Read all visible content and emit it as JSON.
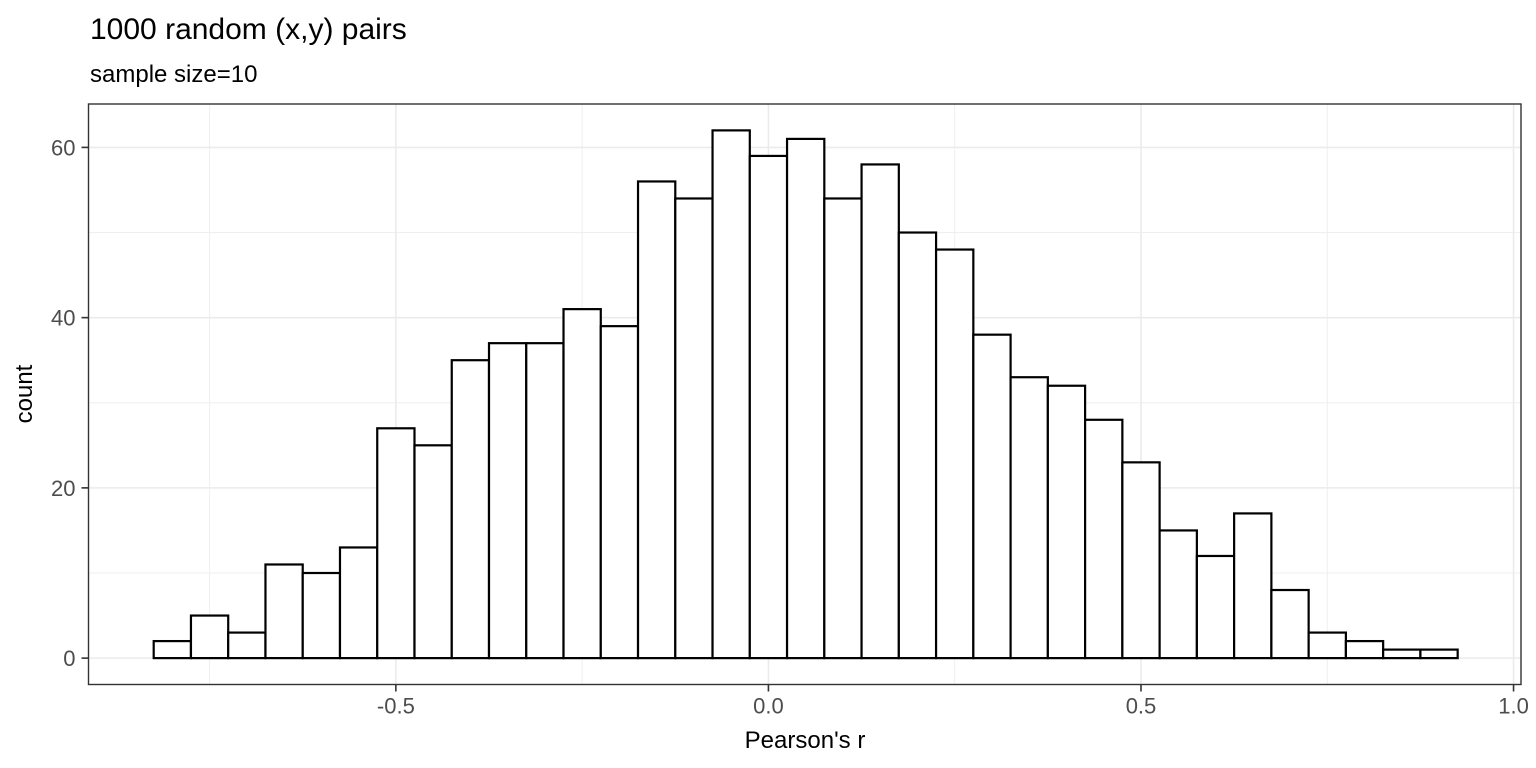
{
  "chart_data": {
    "type": "histogram",
    "title": "1000 random (x,y) pairs",
    "subtitle": "sample size=10",
    "xlabel": "Pearson's r",
    "ylabel": "count",
    "binwidth": 0.05,
    "bin_centers": [
      -0.8,
      -0.75,
      -0.7,
      -0.65,
      -0.6,
      -0.55,
      -0.5,
      -0.45,
      -0.4,
      -0.35,
      -0.3,
      -0.25,
      -0.2,
      -0.15,
      -0.1,
      -0.05,
      0.0,
      0.05,
      0.1,
      0.15,
      0.2,
      0.25,
      0.3,
      0.35,
      0.4,
      0.45,
      0.5,
      0.55,
      0.6,
      0.65,
      0.7,
      0.75,
      0.8,
      0.85,
      0.9
    ],
    "counts": [
      2,
      5,
      3,
      11,
      10,
      13,
      27,
      25,
      35,
      37,
      37,
      41,
      39,
      56,
      54,
      62,
      59,
      61,
      54,
      58,
      50,
      48,
      38,
      33,
      32,
      28,
      23,
      15,
      12,
      17,
      8,
      3,
      2,
      1,
      1
    ],
    "total_count": 1000,
    "x_tick_values": [
      -0.5,
      0.0,
      0.5,
      1.0
    ],
    "x_tick_labels": [
      "-0.5",
      "0.0",
      "0.5",
      "1.0"
    ],
    "x_minor_values": [
      -0.75,
      -0.25,
      0.25,
      0.75
    ],
    "y_tick_values": [
      0,
      20,
      40,
      60
    ],
    "y_tick_labels": [
      "0",
      "20",
      "40",
      "60"
    ],
    "y_minor_values": [
      10,
      30,
      50
    ],
    "xlim": [
      -0.9125,
      1.01
    ],
    "ylim": [
      -3.1,
      65.1
    ],
    "grid": true,
    "legend": "none",
    "colors": {
      "bar_fill": "#FFFFFF",
      "bar_stroke": "#000000",
      "grid_major": "#EBEBEB",
      "grid_minor": "#EFEFEF",
      "panel_border": "#333333",
      "tick": "#333333",
      "tick_label": "#4D4D4D",
      "text": "#000000"
    }
  }
}
